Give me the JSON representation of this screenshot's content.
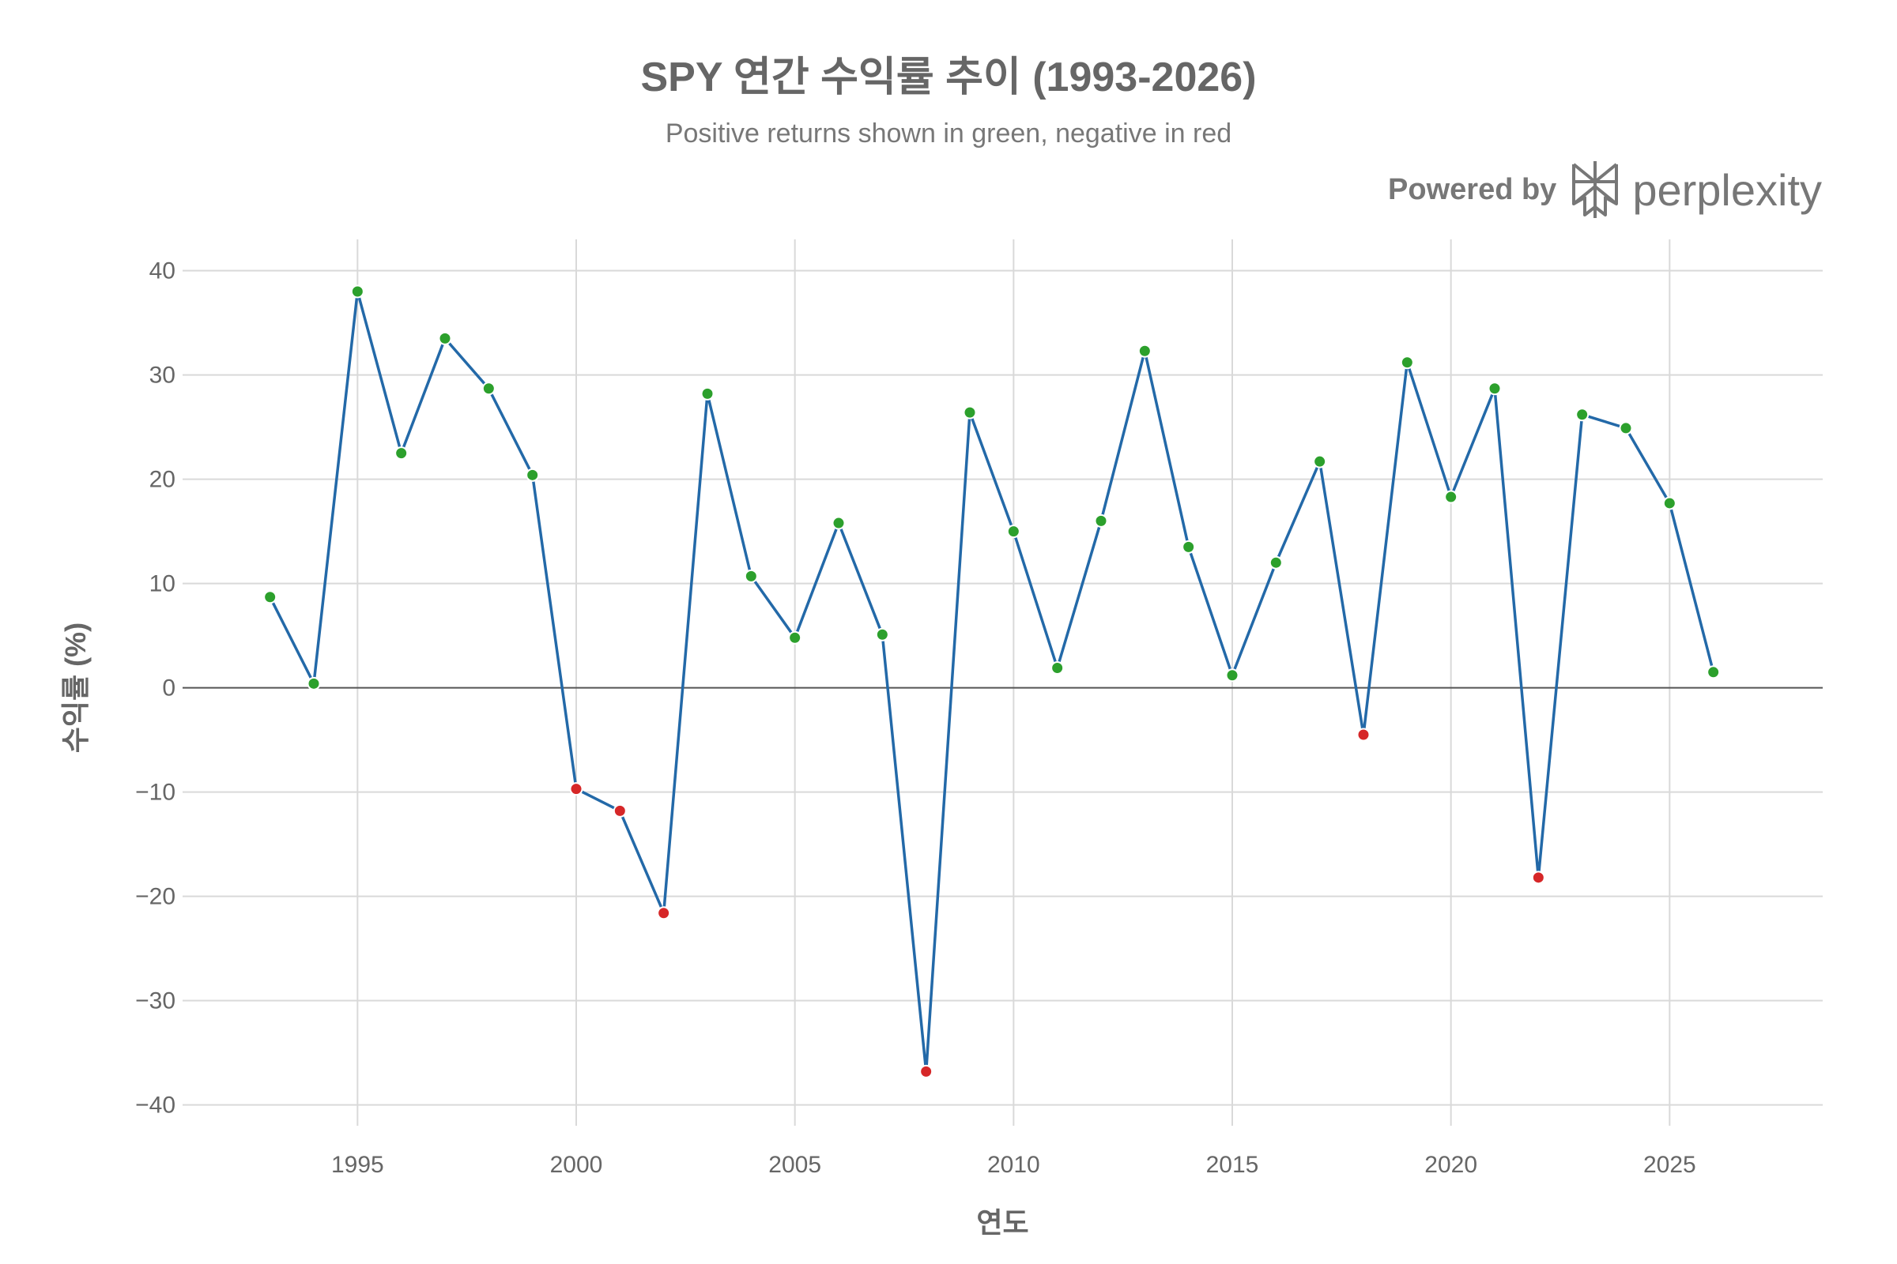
{
  "title": "SPY 연간 수익률 추이 (1993-2026)",
  "subtitle": "Positive returns shown in green, negative in red",
  "brand": {
    "prefix": "Powered by",
    "name": "perplexity",
    "logo_icon": "perplexity-logo-icon"
  },
  "colors": {
    "line": "#2369a8",
    "positive": "#2ca02c",
    "negative": "#d62728",
    "grid": "#d9d9d9",
    "zero": "#555555",
    "text": "#666666"
  },
  "chart_data": {
    "type": "line",
    "title": "SPY 연간 수익률 추이 (1993-2026)",
    "subtitle": "Positive returns shown in green, negative in red",
    "xlabel": "연도",
    "ylabel": "수익률 (%)",
    "xlim": [
      1991,
      2028.5
    ],
    "ylim": [
      -42,
      43
    ],
    "xticks": [
      1995,
      2000,
      2005,
      2010,
      2015,
      2020,
      2025
    ],
    "yticks": [
      40,
      30,
      20,
      10,
      0,
      -10,
      -20,
      -30,
      -40
    ],
    "ytick_labels": [
      "40",
      "30",
      "20",
      "10",
      "0",
      "−10",
      "−20",
      "−30",
      "−40"
    ],
    "grid": true,
    "x": [
      1993,
      1994,
      1995,
      1996,
      1997,
      1998,
      1999,
      2000,
      2001,
      2002,
      2003,
      2004,
      2005,
      2006,
      2007,
      2008,
      2009,
      2010,
      2011,
      2012,
      2013,
      2014,
      2015,
      2016,
      2017,
      2018,
      2019,
      2020,
      2021,
      2022,
      2023,
      2024,
      2025,
      2026
    ],
    "y": [
      8.7,
      0.4,
      38.0,
      22.5,
      33.5,
      28.7,
      20.4,
      -9.7,
      -11.8,
      -21.6,
      28.2,
      10.7,
      4.8,
      15.8,
      5.1,
      -36.8,
      26.4,
      15.0,
      1.9,
      16.0,
      32.3,
      13.5,
      1.2,
      12.0,
      21.7,
      -4.5,
      31.2,
      18.3,
      28.7,
      -18.2,
      26.2,
      24.9,
      17.7,
      1.5
    ],
    "series": [
      {
        "name": "SPY 연간 수익률",
        "color_positive": "green",
        "color_negative": "red"
      }
    ]
  }
}
